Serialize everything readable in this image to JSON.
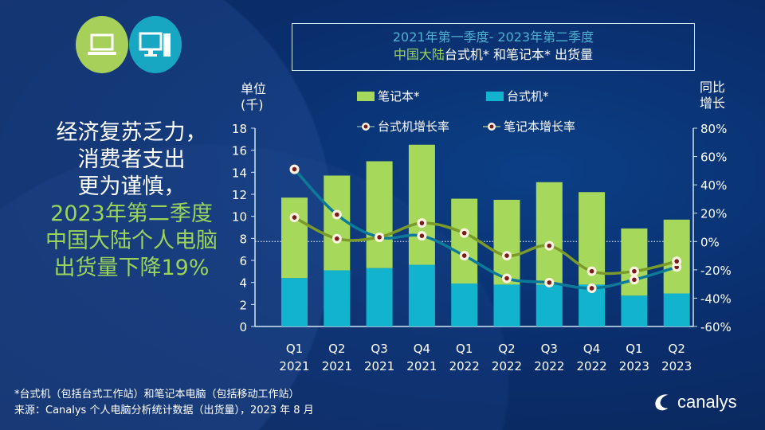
{
  "title": {
    "line1": "2021年第一季度- 2023年第二季度",
    "line2_highlight": "中国大陆",
    "line2_rest": "台式机* 和笔记本* 出货量"
  },
  "headline": {
    "white_lines": [
      "经济复苏乏力，",
      "消费者支出",
      "更为谨慎，"
    ],
    "green_lines": [
      "2023年第二季度",
      "中国大陆个人电脑",
      "出货量下降19%"
    ]
  },
  "icons": [
    "laptop-icon",
    "desktop-computer-icon"
  ],
  "footer": {
    "note": "*台式机（包括台式工作站）和笔记本电脑（包括移动工作站）",
    "source": "来源：Canalys 个人电脑分析统计数据（出货量），2023 年 8 月"
  },
  "logo": "canalys",
  "colors": {
    "notebook": "#a6d85c",
    "desktop": "#12b3cc",
    "desktop_growth_line": "#0e7a9a",
    "notebook_growth_line": "#7a9a2a",
    "marker": "#7a1a1a"
  },
  "chart_data": {
    "type": "bar",
    "stacked": true,
    "title": "2021年第一季度- 2023年第二季度 中国大陆台式机* 和笔记本* 出货量",
    "ylabel": "单位\n(千)",
    "ylabel_lines": [
      "单位",
      "(千)"
    ],
    "y2label_lines": [
      "同比",
      "增长"
    ],
    "ylim": [
      0,
      18
    ],
    "yticks": [
      "0",
      "2",
      "4",
      "6",
      "8",
      "10",
      "12",
      "14",
      "16",
      "18"
    ],
    "y2lim": [
      -60,
      80
    ],
    "y2ticks": [
      "-60%",
      "-40%",
      "-20%",
      "0%",
      "20%",
      "40%",
      "60%",
      "80%"
    ],
    "categories": [
      [
        "Q1",
        "2021"
      ],
      [
        "Q2",
        "2021"
      ],
      [
        "Q3",
        "2021"
      ],
      [
        "Q4",
        "2021"
      ],
      [
        "Q1",
        "2022"
      ],
      [
        "Q2",
        "2022"
      ],
      [
        "Q3",
        "2022"
      ],
      [
        "Q4",
        "2022"
      ],
      [
        "Q1",
        "2023"
      ],
      [
        "Q2",
        "2023"
      ]
    ],
    "series": [
      {
        "name": "台式机*",
        "type": "bar",
        "values": [
          4.4,
          5.1,
          5.3,
          5.6,
          3.9,
          3.8,
          3.8,
          3.8,
          2.8,
          3.0
        ]
      },
      {
        "name": "笔记本*",
        "type": "bar",
        "values": [
          7.3,
          8.6,
          9.7,
          10.9,
          7.7,
          7.7,
          9.3,
          8.4,
          6.1,
          6.7
        ]
      },
      {
        "name": "台式机增长率",
        "type": "line",
        "axis": "right",
        "values": [
          51,
          19,
          3,
          4,
          -10,
          -26,
          -29,
          -33,
          -27,
          -18
        ]
      },
      {
        "name": "笔记本增长率",
        "type": "line",
        "axis": "right",
        "values": [
          17,
          2,
          3,
          13,
          6,
          -10,
          -3,
          -21,
          -21,
          -14
        ]
      }
    ],
    "legend": "top"
  }
}
